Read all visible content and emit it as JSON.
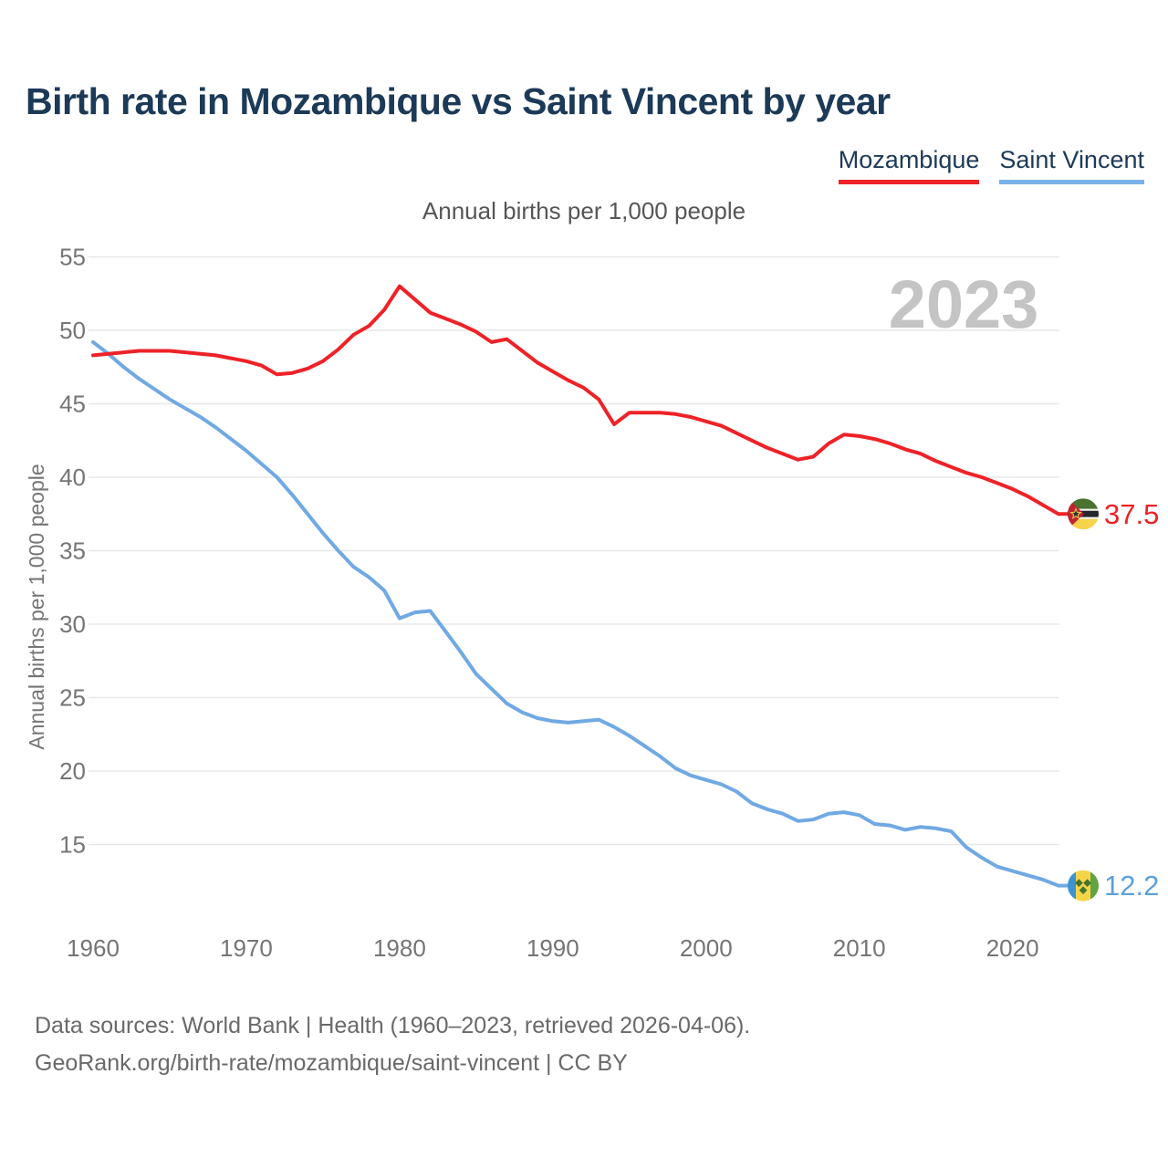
{
  "title": "Birth rate in Mozambique vs Saint Vincent by year",
  "legend": [
    {
      "label": "Mozambique",
      "color": "#ee2227"
    },
    {
      "label": "Saint Vincent",
      "color": "#79b1e8"
    }
  ],
  "watermark": "2023",
  "footer": {
    "line1": "Data sources: World Bank | Health (1960–2023, retrieved 2026-04-06).",
    "line2": "GeoRank.org/birth-rate/mozambique/saint-vincent | CC BY"
  },
  "chart_data": {
    "type": "line",
    "title": "Annual births per 1,000 people",
    "xlabel": "",
    "ylabel": "Annual births per 1,000 people",
    "x_start": 1960,
    "x_end": 2023,
    "x_ticks": [
      1960,
      1970,
      1980,
      1990,
      2000,
      2010,
      2020
    ],
    "y_ticks": [
      15,
      20,
      25,
      30,
      35,
      40,
      45,
      50,
      55
    ],
    "ylim": [
      12,
      55
    ],
    "grid": true,
    "legend_position": "top-right",
    "axis_text_color": "#757575",
    "grid_color": "#e8e8e8",
    "watermark_color": "#c4c4c4",
    "series": [
      {
        "name": "Mozambique",
        "color": "#ee2227",
        "end_label": "37.5",
        "end_label_color": "#ee2227",
        "flag_icon": "mozambique-flag-icon",
        "values": [
          48.3,
          48.4,
          48.5,
          48.6,
          48.6,
          48.6,
          48.5,
          48.4,
          48.3,
          48.1,
          47.9,
          47.6,
          47.0,
          47.1,
          47.4,
          47.9,
          48.7,
          49.7,
          50.3,
          51.4,
          53.0,
          52.1,
          51.2,
          50.8,
          50.4,
          49.9,
          49.2,
          49.4,
          48.6,
          47.8,
          47.2,
          46.6,
          46.1,
          45.3,
          43.6,
          44.4,
          44.4,
          44.4,
          44.3,
          44.1,
          43.8,
          43.5,
          43.0,
          42.5,
          42.0,
          41.6,
          41.2,
          41.4,
          42.3,
          42.9,
          42.8,
          42.6,
          42.3,
          41.9,
          41.6,
          41.1,
          40.7,
          40.3,
          40.0,
          39.6,
          39.2,
          38.7,
          38.1,
          37.5
        ]
      },
      {
        "name": "Saint Vincent",
        "color": "#70a9e3",
        "end_label": "12.2",
        "end_label_color": "#5b9fdb",
        "flag_icon": "saint-vincent-flag-icon",
        "values": [
          49.2,
          48.4,
          47.5,
          46.7,
          46.0,
          45.3,
          44.7,
          44.1,
          43.4,
          42.6,
          41.8,
          40.9,
          40.0,
          38.8,
          37.5,
          36.2,
          35.0,
          33.9,
          33.2,
          32.3,
          30.4,
          30.8,
          30.9,
          29.5,
          28.1,
          26.6,
          25.6,
          24.6,
          24.0,
          23.6,
          23.4,
          23.3,
          23.4,
          23.5,
          23.0,
          22.4,
          21.7,
          21.0,
          20.2,
          19.7,
          19.4,
          19.1,
          18.6,
          17.8,
          17.4,
          17.1,
          16.6,
          16.7,
          17.1,
          17.2,
          17.0,
          16.4,
          16.3,
          16.0,
          16.2,
          16.1,
          15.9,
          14.8,
          14.1,
          13.5,
          13.2,
          12.9,
          12.6,
          12.2
        ]
      }
    ]
  }
}
